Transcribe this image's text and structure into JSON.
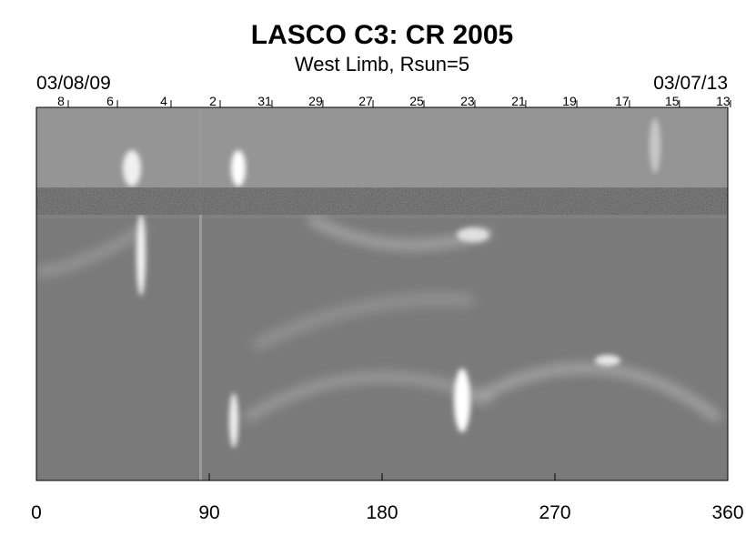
{
  "chart_data": {
    "type": "synoptic-map",
    "title": "LASCO C3: CR 2005",
    "subtitle": "West Limb, Rsun=5",
    "start_date": "03/08/09",
    "end_date": "03/07/13",
    "xlim": [
      0,
      360
    ],
    "xticks": [
      0,
      90,
      180,
      270,
      360
    ],
    "top_ticks": [
      {
        "value": 12.8,
        "label": "8"
      },
      {
        "value": 38.4,
        "label": "6"
      },
      {
        "value": 66.3,
        "label": "4"
      },
      {
        "value": 91.9,
        "label": "2"
      },
      {
        "value": 118.9,
        "label": "31"
      },
      {
        "value": 145.4,
        "label": "29"
      },
      {
        "value": 171.5,
        "label": "27"
      },
      {
        "value": 198,
        "label": "25"
      },
      {
        "value": 224.5,
        "label": "23"
      },
      {
        "value": 251,
        "label": "21"
      },
      {
        "value": 277.6,
        "label": "19"
      },
      {
        "value": 305,
        "label": "17"
      },
      {
        "value": 331,
        "label": "15"
      },
      {
        "value": 357.6,
        "label": "13"
      }
    ]
  }
}
